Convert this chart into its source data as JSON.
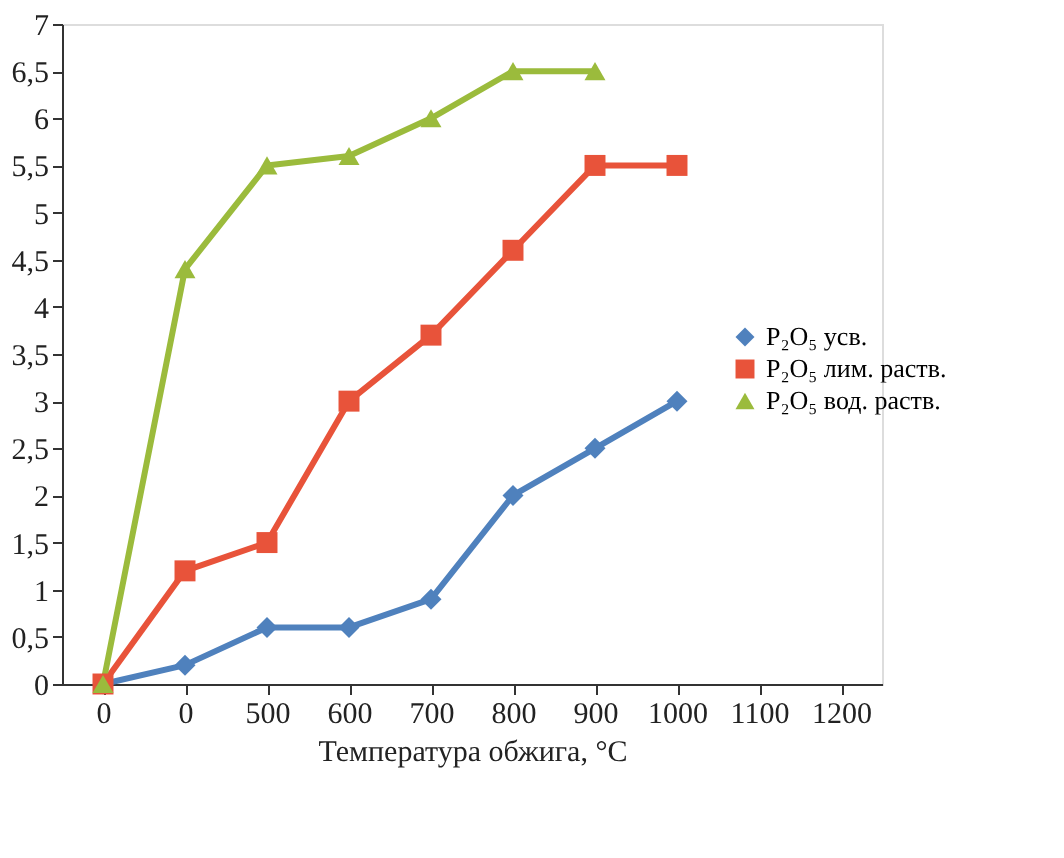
{
  "chart_data": {
    "type": "line",
    "xlabel": "Температура обжига, °C",
    "categories": [
      "0",
      "0",
      "500",
      "600",
      "700",
      "800",
      "900",
      "1000",
      "1100",
      "1200"
    ],
    "series": [
      {
        "name": "P₂O₅ усв.",
        "color": "#4f81bd",
        "marker": "diamond",
        "values": [
          0,
          0.2,
          0.6,
          0.6,
          0.9,
          2.0,
          2.5,
          3.0,
          null,
          null
        ]
      },
      {
        "name": "P₂O₅ лим. раств.",
        "color": "#e8533a",
        "marker": "square",
        "values": [
          0,
          1.2,
          1.5,
          3.0,
          3.7,
          4.6,
          5.5,
          5.5,
          null,
          null
        ]
      },
      {
        "name": "P₂O₅ вод. раств.",
        "color": "#9bbb3c",
        "marker": "triangle",
        "values": [
          0,
          4.4,
          5.5,
          5.6,
          6.0,
          6.5,
          6.5,
          null,
          null,
          null
        ]
      }
    ],
    "ylim": [
      0,
      7
    ],
    "yticks": [
      0,
      {
        "value": 0.5,
        "label": "0,5"
      },
      1,
      {
        "value": 1.5,
        "label": "1,5"
      },
      2,
      {
        "value": 2.5,
        "label": "2,5"
      },
      3,
      {
        "value": 3.5,
        "label": "3,5"
      },
      4,
      {
        "value": 4.5,
        "label": "4,5"
      },
      5,
      {
        "value": 5.5,
        "label": "5,5"
      },
      6,
      {
        "value": 6.5,
        "label": "6,5"
      },
      7
    ],
    "grid": false,
    "legend": "right",
    "line_style": "solid"
  }
}
